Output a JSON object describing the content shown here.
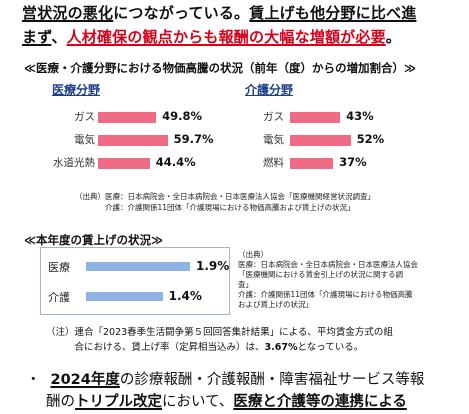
{
  "intro": {
    "line1_a": "営状況の悪化",
    "line1_b": "につながっている。",
    "line1_c": "賃上げも他分野に比べ進",
    "line2_a": "まず",
    "line2_b": "、",
    "line2_c": "人材確保の観点からも報酬の大幅な増額が必要",
    "line2_d": "。"
  },
  "prices_section": {
    "title": "≪医療・介護分野における物価高騰の状況（前年（度）からの増加割合）≫"
  },
  "chart_data": [
    {
      "type": "bar",
      "title": "医療分野",
      "categories": [
        "ガス",
        "電気",
        "水道光熱"
      ],
      "values": [
        49.8,
        59.7,
        44.4
      ],
      "value_labels": [
        "49.8%",
        "59.7%",
        "44.4%"
      ]
    },
    {
      "type": "bar",
      "title": "介護分野",
      "categories": [
        "ガス",
        "電気",
        "燃料"
      ],
      "values": [
        43,
        52,
        37
      ],
      "value_labels": [
        "43%",
        "52%",
        "37%"
      ]
    },
    {
      "type": "bar",
      "title": "≪本年度の賃上げの状況≫",
      "categories": [
        "医療",
        "介護"
      ],
      "values": [
        1.9,
        1.4
      ],
      "value_labels": [
        "1.9%",
        "1.4%"
      ]
    }
  ],
  "prices_source": {
    "line1": "（出典）医療：日本病院会・全日本病院会・日本医療法人協会「医療機関経営状況調査」",
    "line2": "　　　　介護：介護関係11団体「介護現場における物価高騰および賃上げの状況」"
  },
  "wage_section": {
    "title": "≪本年度の賃上げの状況≫",
    "source": "（出典）\n医療：日本病院会・全日本病院会・日本医療法人協会\n「医療機関における賃金引上げの状況に関する調\n査」\n介護：介護関係11団体「介護現場における物価高騰\nおよび賃上げの状況」"
  },
  "note": {
    "text": "（注）連合「2023春季生活闘争第５回回答集計結果」による、平均賃金方式の組\n　　　合における、賃上げ率（定昇相当込み）は、",
    "highlight": "3.67%",
    "tail": "となっている。"
  },
  "bottom": {
    "bullet": "・",
    "year": "2024年度",
    "text1": "の診療報酬・介護報酬・障害福祉サービス等報",
    "text2": "酬の",
    "triple": "トリプル改定",
    "text3": "において、",
    "tail": "医療と介護等の連携による"
  }
}
